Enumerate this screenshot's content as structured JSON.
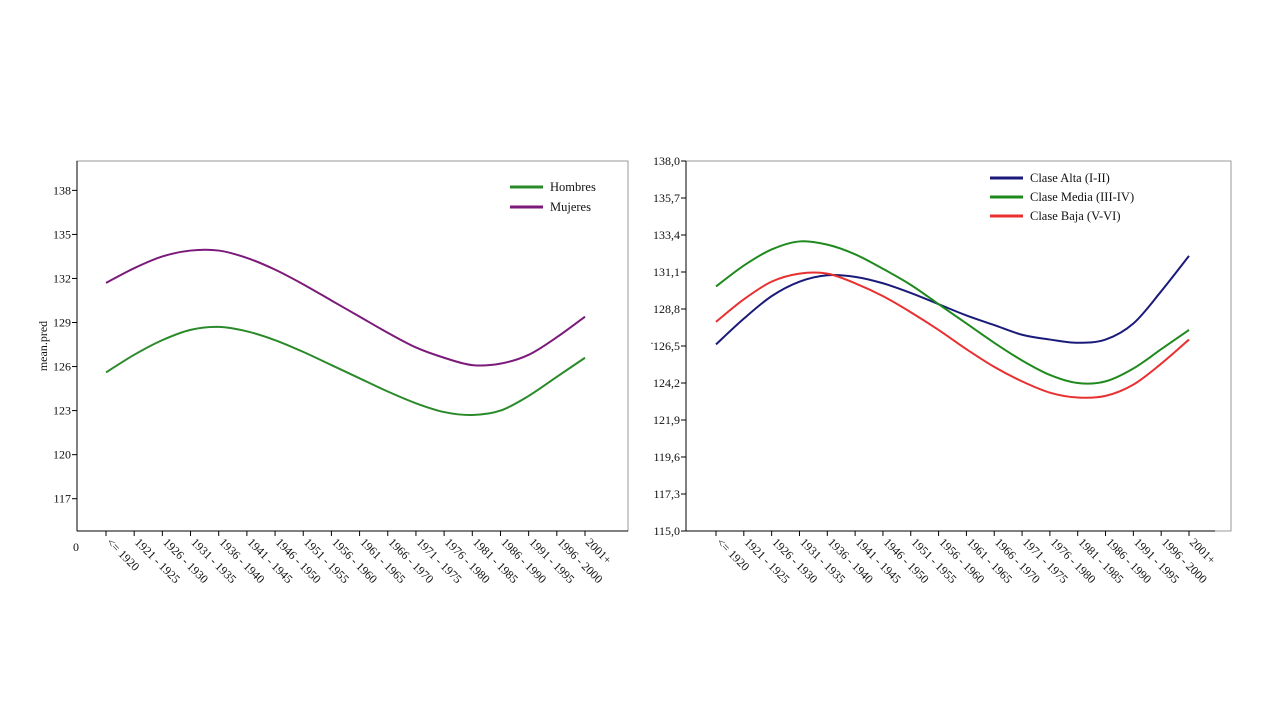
{
  "chart_data": [
    {
      "type": "line",
      "ylabel": "mean.pred",
      "ylim": [
        114.8,
        140
      ],
      "yticks": [
        117,
        120,
        123,
        126,
        129,
        132,
        135,
        138
      ],
      "origin_label": "0",
      "grid": false,
      "legend_position": "top-right",
      "categories": [
        "<= 1920",
        "1921 - 1925",
        "1926 - 1930",
        "1931 - 1935",
        "1936 - 1940",
        "1941 - 1945",
        "1946 - 1950",
        "1951 - 1955",
        "1956 - 1960",
        "1961 - 1965",
        "1966 - 1970",
        "1971 - 1975",
        "1976 - 1980",
        "1981 - 1985",
        "1986 - 1990",
        "1991 - 1995",
        "1996 - 2000",
        "2001+"
      ],
      "series": [
        {
          "name": "Hombres",
          "color": "#2a8a2a",
          "values": [
            125.6,
            126.8,
            127.8,
            128.5,
            128.7,
            128.4,
            127.8,
            127.0,
            126.1,
            125.2,
            124.3,
            123.5,
            122.9,
            122.7,
            123.0,
            124.0,
            125.3,
            126.6
          ]
        },
        {
          "name": "Mujeres",
          "color": "#7b1a7b",
          "values": [
            131.7,
            132.7,
            133.5,
            133.9,
            133.9,
            133.4,
            132.6,
            131.6,
            130.5,
            129.4,
            128.3,
            127.3,
            126.6,
            126.1,
            126.2,
            126.8,
            128.0,
            129.4
          ]
        }
      ]
    },
    {
      "type": "line",
      "ylabel": ".",
      "ylim": [
        115.0,
        138.0
      ],
      "yticks": [
        "115,0",
        "117,3",
        "119,6",
        "121,9",
        "124,2",
        "126,5",
        "128,8",
        "131,1",
        "133,4",
        "135,7",
        "138,0"
      ],
      "grid": false,
      "legend_position": "top-right",
      "categories": [
        "<= 1920",
        "1921 - 1925",
        "1926 - 1930",
        "1931 - 1935",
        "1936 - 1940",
        "1941 - 1945",
        "1946 - 1950",
        "1951 - 1955",
        "1956 - 1960",
        "1961 - 1965",
        "1966 - 1970",
        "1971 - 1975",
        "1976 - 1980",
        "1981 - 1985",
        "1986 - 1990",
        "1991 - 1995",
        "1996 - 2000",
        "2001+"
      ],
      "series": [
        {
          "name": "Clase Alta (I-II)",
          "color": "#1a1a7a",
          "values": [
            126.6,
            128.2,
            129.6,
            130.5,
            130.9,
            130.8,
            130.4,
            129.8,
            129.1,
            128.4,
            127.8,
            127.2,
            126.9,
            126.7,
            126.9,
            127.9,
            129.9,
            132.1
          ]
        },
        {
          "name": "Clase Media (III-IV)",
          "color": "#1e8a1e",
          "values": [
            130.2,
            131.5,
            132.5,
            133.0,
            132.8,
            132.2,
            131.3,
            130.3,
            129.1,
            127.9,
            126.7,
            125.6,
            124.7,
            124.2,
            124.3,
            125.1,
            126.3,
            127.5
          ]
        },
        {
          "name": "Clase Baja (V-VI)",
          "color": "#e83030",
          "values": [
            128.0,
            129.4,
            130.5,
            131.0,
            131.0,
            130.4,
            129.6,
            128.6,
            127.5,
            126.3,
            125.2,
            124.3,
            123.6,
            123.3,
            123.4,
            124.1,
            125.4,
            126.9
          ]
        }
      ]
    }
  ]
}
